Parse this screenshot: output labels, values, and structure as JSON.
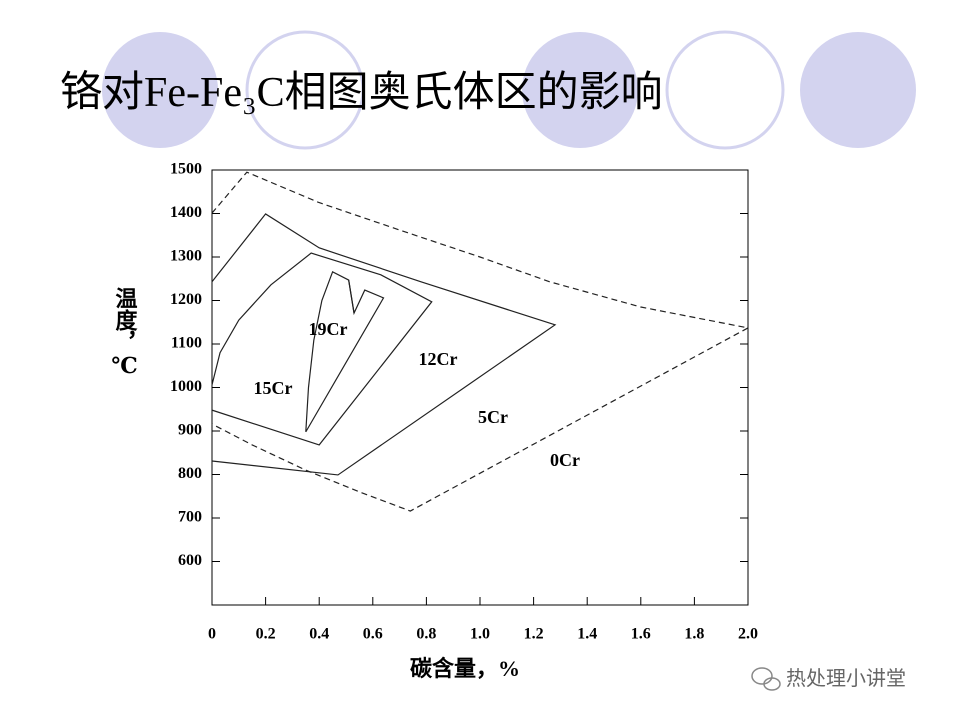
{
  "chart_data": {
    "type": "line",
    "title": "铬对Fe-Fe₃C相图奥氏体区的影响",
    "x_label": "碳含量，%",
    "y_label": "温度，℃",
    "xlim": [
      0,
      2.0
    ],
    "ylim": [
      500,
      1500
    ],
    "xticks": [
      0,
      0.2,
      0.4,
      0.6,
      0.8,
      {
        "value": 1,
        "label": "1.0"
      },
      1.2,
      1.4,
      1.6,
      1.8,
      {
        "value": 2,
        "label": "2.0"
      }
    ],
    "yticks": [
      600,
      700,
      800,
      900,
      1000,
      1100,
      1200,
      1300,
      1400,
      1500
    ],
    "grid": false,
    "series": [
      {
        "name": "0Cr",
        "color": "#222222",
        "dashed": true,
        "x": [
          0,
          0.13,
          0.4,
          0.7,
          1.0,
          1.26,
          1.6,
          2.0,
          0.74,
          0.55,
          0.35,
          0.15,
          0
        ],
        "values": [
          1401,
          1495,
          1425,
          1362,
          1300,
          1243,
          1185,
          1137,
          716,
          760,
          810,
          868,
          916
        ]
      },
      {
        "name": "5Cr",
        "color": "#222222",
        "dashed": false,
        "x": [
          0,
          0.2,
          0.4,
          0.78,
          1.28,
          0.47,
          0
        ],
        "values": [
          1243,
          1399,
          1321,
          1243,
          1144,
          799,
          831
        ]
      },
      {
        "name": "12Cr",
        "color": "#222222",
        "dashed": false,
        "x": [
          0,
          0.03,
          0.1,
          0.22,
          0.37,
          0.63,
          0.82,
          0.4,
          0
        ],
        "values": [
          1006,
          1080,
          1155,
          1236,
          1309,
          1259,
          1197,
          868,
          948
        ]
      },
      {
        "name": "15Cr",
        "color": "#222222",
        "dashed": false,
        "x": [
          0.35,
          0.36,
          0.38,
          0.41,
          0.45,
          0.51,
          0.53,
          0.57,
          0.64,
          0.35
        ],
        "values": [
          898,
          1000,
          1109,
          1200,
          1266,
          1247,
          1171,
          1224,
          1206,
          898
        ]
      },
      {
        "name": "19Cr",
        "color": "#222222",
        "dashed": false,
        "x": [
          0.51,
          0.53
        ],
        "values": [
          1247,
          1171
        ]
      }
    ]
  },
  "watermark": "热处理小讲堂"
}
